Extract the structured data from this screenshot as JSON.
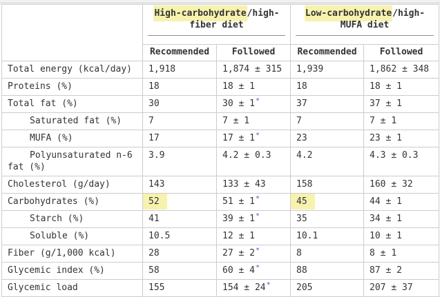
{
  "table": {
    "groups": [
      {
        "highlight": "High-carbohydrate",
        "rest": "/high-fiber diet"
      },
      {
        "highlight": "Low-carbohydrate",
        "rest": "/high-MUFA diet"
      }
    ],
    "subheaders": [
      "Recommended",
      "Followed",
      "Recommended",
      "Followed"
    ],
    "footnote_marker": "*",
    "rows": [
      {
        "label": "Total energy (kcal/day)",
        "indent": false,
        "cells": [
          {
            "text": "1,918"
          },
          {
            "text": "1,874 ± 315"
          },
          {
            "text": "1,939"
          },
          {
            "text": "1,862 ± 348"
          }
        ]
      },
      {
        "label": "Proteins (%)",
        "indent": false,
        "cells": [
          {
            "text": "18"
          },
          {
            "text": "18 ± 1"
          },
          {
            "text": "18"
          },
          {
            "text": "18 ± 1"
          }
        ]
      },
      {
        "label": "Total fat (%)",
        "indent": false,
        "cells": [
          {
            "text": "30"
          },
          {
            "text": "30 ± 1",
            "sup": "*"
          },
          {
            "text": "37"
          },
          {
            "text": "37 ± 1"
          }
        ]
      },
      {
        "label": "Saturated fat (%)",
        "indent": true,
        "cells": [
          {
            "text": "7"
          },
          {
            "text": "7 ± 1"
          },
          {
            "text": "7"
          },
          {
            "text": "7 ± 1"
          }
        ]
      },
      {
        "label": "MUFA (%)",
        "indent": true,
        "cells": [
          {
            "text": "17"
          },
          {
            "text": "17 ± 1",
            "sup": "*"
          },
          {
            "text": "23"
          },
          {
            "text": "23 ± 1"
          }
        ]
      },
      {
        "label": "Polyunsaturated n-6 fat (%)",
        "indent": true,
        "cells": [
          {
            "text": "3.9"
          },
          {
            "text": "4.2 ± 0.3"
          },
          {
            "text": "4.2"
          },
          {
            "text": "4.3 ± 0.3"
          }
        ]
      },
      {
        "label": "Cholesterol (g/day)",
        "indent": false,
        "cells": [
          {
            "text": "143"
          },
          {
            "text": "133 ± 43"
          },
          {
            "text": "158"
          },
          {
            "text": "160 ± 32"
          }
        ]
      },
      {
        "label": "Carbohydrates (%)",
        "indent": false,
        "cells": [
          {
            "text": "52",
            "highlight": true
          },
          {
            "text": "51 ± 1",
            "sup": "*"
          },
          {
            "text": "45",
            "highlight": true
          },
          {
            "text": "44 ± 1"
          }
        ]
      },
      {
        "label": "Starch (%)",
        "indent": true,
        "cells": [
          {
            "text": "41"
          },
          {
            "text": "39 ± 1",
            "sup": "*"
          },
          {
            "text": "35"
          },
          {
            "text": "34 ± 1"
          }
        ]
      },
      {
        "label": "Soluble (%)",
        "indent": true,
        "cells": [
          {
            "text": "10.5"
          },
          {
            "text": "12 ± 1"
          },
          {
            "text": "10.1"
          },
          {
            "text": "10 ± 1"
          }
        ]
      },
      {
        "label": "Fiber (g/1,000 kcal)",
        "indent": false,
        "cells": [
          {
            "text": "28"
          },
          {
            "text": "27 ± 2",
            "sup": "*"
          },
          {
            "text": "8"
          },
          {
            "text": "8 ± 1"
          }
        ]
      },
      {
        "label": "Glycemic index (%)",
        "indent": false,
        "cells": [
          {
            "text": "58"
          },
          {
            "text": "60 ± 4",
            "sup": "*"
          },
          {
            "text": "88"
          },
          {
            "text": "87 ± 2"
          }
        ]
      },
      {
        "label": "Glycemic load",
        "indent": false,
        "cells": [
          {
            "text": "155"
          },
          {
            "text": "154 ± 24",
            "sup": "*"
          },
          {
            "text": "205"
          },
          {
            "text": "207 ± 37"
          }
        ]
      }
    ]
  },
  "colors": {
    "search_highlight": "#f7f2ae",
    "footnote_marker": "#4f5bc0",
    "text": "#333333"
  }
}
